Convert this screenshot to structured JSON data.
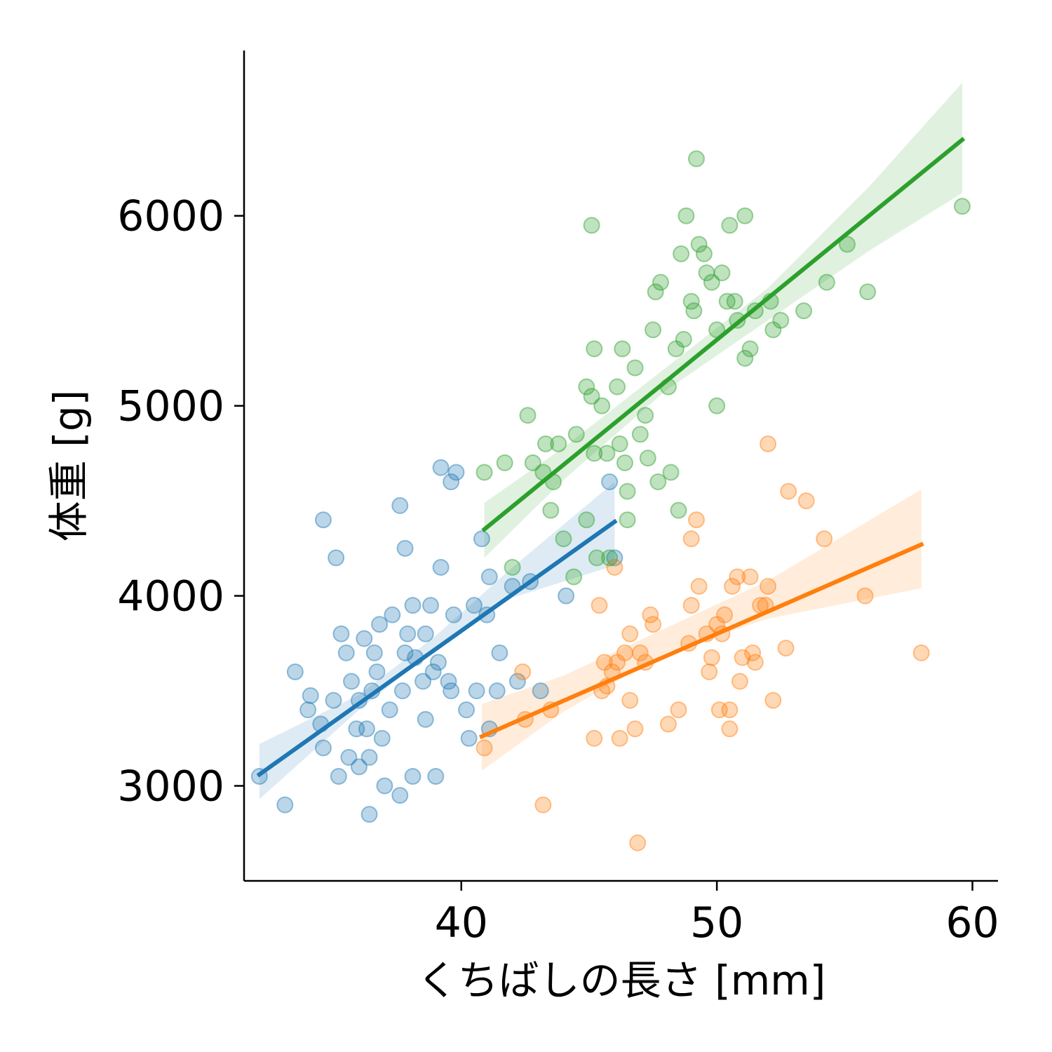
{
  "chart_data": {
    "type": "scatter",
    "title": "",
    "xlabel": "くちばしの長さ [mm]",
    "ylabel": "体重 [g]",
    "xlim": [
      31.5,
      61.0
    ],
    "ylim": [
      2500,
      6870
    ],
    "xticks": [
      40,
      50,
      60
    ],
    "yticks": [
      3000,
      4000,
      5000,
      6000
    ],
    "grid": false,
    "legend": "none",
    "regression": true,
    "series": [
      {
        "color": "#1f77b4",
        "fit": {
          "x": [
            32.1,
            46.0
          ],
          "y": [
            3060,
            4390
          ]
        },
        "ci_low": [
          [
            32.1,
            2930
          ],
          [
            36.0,
            3400
          ],
          [
            39.0,
            3720
          ],
          [
            42.0,
            3990
          ],
          [
            46.0,
            4160
          ]
        ],
        "ci_high": [
          [
            32.1,
            3220
          ],
          [
            36.0,
            3480
          ],
          [
            39.0,
            3790
          ],
          [
            42.0,
            4150
          ],
          [
            46.0,
            4600
          ]
        ],
        "points": [
          [
            32.1,
            3050
          ],
          [
            33.1,
            2900
          ],
          [
            33.5,
            3600
          ],
          [
            34.0,
            3400
          ],
          [
            34.1,
            3475
          ],
          [
            34.5,
            3325
          ],
          [
            34.6,
            3200
          ],
          [
            34.6,
            4400
          ],
          [
            35.0,
            3450
          ],
          [
            35.1,
            4200
          ],
          [
            35.2,
            3050
          ],
          [
            35.3,
            3800
          ],
          [
            35.5,
            3700
          ],
          [
            35.6,
            3150
          ],
          [
            35.7,
            3550
          ],
          [
            35.9,
            3300
          ],
          [
            36.0,
            3100
          ],
          [
            36.0,
            3450
          ],
          [
            36.2,
            3775
          ],
          [
            36.3,
            3300
          ],
          [
            36.4,
            2850
          ],
          [
            36.4,
            3150
          ],
          [
            36.5,
            3500
          ],
          [
            36.6,
            3700
          ],
          [
            36.7,
            3600
          ],
          [
            36.8,
            3850
          ],
          [
            37.0,
            3000
          ],
          [
            37.2,
            3400
          ],
          [
            37.3,
            3900
          ],
          [
            37.6,
            2950
          ],
          [
            37.6,
            4475
          ],
          [
            37.7,
            3500
          ],
          [
            37.8,
            4250
          ],
          [
            37.8,
            3700
          ],
          [
            38.1,
            3050
          ],
          [
            38.1,
            3950
          ],
          [
            38.2,
            3675
          ],
          [
            38.5,
            3550
          ],
          [
            38.6,
            3800
          ],
          [
            38.6,
            3350
          ],
          [
            38.8,
            3950
          ],
          [
            39.0,
            3050
          ],
          [
            39.1,
            3650
          ],
          [
            39.2,
            4150
          ],
          [
            39.2,
            4675
          ],
          [
            39.5,
            3550
          ],
          [
            39.6,
            4600
          ],
          [
            39.6,
            3500
          ],
          [
            39.7,
            3900
          ],
          [
            39.8,
            4650
          ],
          [
            40.2,
            3400
          ],
          [
            40.3,
            3250
          ],
          [
            40.5,
            3950
          ],
          [
            40.6,
            3500
          ],
          [
            40.8,
            4300
          ],
          [
            41.0,
            3900
          ],
          [
            41.1,
            4100
          ],
          [
            41.1,
            3300
          ],
          [
            41.4,
            3500
          ],
          [
            41.5,
            3700
          ],
          [
            42.0,
            4050
          ],
          [
            42.2,
            3550
          ],
          [
            42.7,
            4075
          ],
          [
            43.1,
            3500
          ],
          [
            44.1,
            4000
          ],
          [
            45.8,
            4600
          ],
          [
            46.0,
            4200
          ],
          [
            38.9,
            3600
          ],
          [
            37.9,
            3800
          ],
          [
            36.9,
            3250
          ]
        ]
      },
      {
        "color": "#ff7f0e",
        "fit": {
          "x": [
            40.8,
            58.0
          ],
          "y": [
            3260,
            4270
          ]
        },
        "ci_low": [
          [
            40.8,
            3080
          ],
          [
            44.0,
            3390
          ],
          [
            48.0,
            3700
          ],
          [
            52.0,
            3880
          ],
          [
            58.0,
            4040
          ]
        ],
        "ci_high": [
          [
            40.8,
            3430
          ],
          [
            44.0,
            3580
          ],
          [
            48.0,
            3830
          ],
          [
            52.0,
            4080
          ],
          [
            58.0,
            4560
          ]
        ],
        "points": [
          [
            40.9,
            3200
          ],
          [
            42.4,
            3600
          ],
          [
            42.5,
            3350
          ],
          [
            43.2,
            2900
          ],
          [
            43.5,
            3400
          ],
          [
            45.2,
            3250
          ],
          [
            45.4,
            3950
          ],
          [
            45.5,
            3500
          ],
          [
            45.6,
            3650
          ],
          [
            45.7,
            3525
          ],
          [
            46.0,
            4150
          ],
          [
            46.1,
            3650
          ],
          [
            46.2,
            3250
          ],
          [
            46.4,
            3700
          ],
          [
            46.6,
            3450
          ],
          [
            46.6,
            3800
          ],
          [
            46.8,
            3300
          ],
          [
            46.9,
            2700
          ],
          [
            47.0,
            3700
          ],
          [
            47.4,
            3900
          ],
          [
            47.5,
            3850
          ],
          [
            48.1,
            3325
          ],
          [
            48.5,
            3400
          ],
          [
            49.0,
            3950
          ],
          [
            49.0,
            4300
          ],
          [
            49.2,
            4400
          ],
          [
            49.3,
            4050
          ],
          [
            49.6,
            3800
          ],
          [
            49.7,
            3600
          ],
          [
            49.8,
            3675
          ],
          [
            50.1,
            3400
          ],
          [
            50.2,
            3800
          ],
          [
            50.3,
            3900
          ],
          [
            50.5,
            3300
          ],
          [
            50.5,
            3400
          ],
          [
            50.6,
            4050
          ],
          [
            50.8,
            4100
          ],
          [
            50.9,
            3550
          ],
          [
            51.0,
            3675
          ],
          [
            51.3,
            4100
          ],
          [
            51.4,
            3700
          ],
          [
            51.5,
            3650
          ],
          [
            51.7,
            3950
          ],
          [
            52.0,
            4800
          ],
          [
            52.0,
            4050
          ],
          [
            52.2,
            3450
          ],
          [
            52.7,
            3725
          ],
          [
            52.8,
            4550
          ],
          [
            53.5,
            4500
          ],
          [
            54.2,
            4300
          ],
          [
            55.8,
            4000
          ],
          [
            58.0,
            3700
          ],
          [
            45.9,
            3600
          ],
          [
            47.2,
            3650
          ],
          [
            48.9,
            3750
          ],
          [
            50.0,
            3850
          ],
          [
            51.9,
            3950
          ]
        ]
      },
      {
        "color": "#2ca02c",
        "fit": {
          "x": [
            40.9,
            59.6
          ],
          "y": [
            4350,
            6400
          ]
        },
        "ci_low": [
          [
            40.9,
            4200
          ],
          [
            44.0,
            4610
          ],
          [
            48.0,
            5080
          ],
          [
            52.0,
            5450
          ],
          [
            56.0,
            5820
          ],
          [
            59.6,
            6120
          ]
        ],
        "ci_high": [
          [
            40.9,
            4490
          ],
          [
            44.0,
            4780
          ],
          [
            48.0,
            5200
          ],
          [
            52.0,
            5620
          ],
          [
            56.0,
            6160
          ],
          [
            59.6,
            6700
          ]
        ],
        "points": [
          [
            40.9,
            4650
          ],
          [
            41.7,
            4700
          ],
          [
            42.0,
            4150
          ],
          [
            42.6,
            4950
          ],
          [
            42.8,
            4700
          ],
          [
            43.2,
            4650
          ],
          [
            43.3,
            4800
          ],
          [
            43.5,
            4450
          ],
          [
            43.6,
            4600
          ],
          [
            44.0,
            4300
          ],
          [
            44.4,
            4100
          ],
          [
            44.5,
            4850
          ],
          [
            44.9,
            5100
          ],
          [
            45.1,
            5050
          ],
          [
            45.2,
            4750
          ],
          [
            45.2,
            5300
          ],
          [
            45.3,
            4200
          ],
          [
            45.5,
            5000
          ],
          [
            45.7,
            4750
          ],
          [
            45.8,
            4200
          ],
          [
            46.1,
            5100
          ],
          [
            46.2,
            4800
          ],
          [
            46.3,
            5300
          ],
          [
            46.4,
            4700
          ],
          [
            46.5,
            4550
          ],
          [
            46.8,
            5200
          ],
          [
            47.0,
            4850
          ],
          [
            47.2,
            4950
          ],
          [
            47.3,
            4725
          ],
          [
            47.5,
            5400
          ],
          [
            47.7,
            4600
          ],
          [
            47.8,
            5650
          ],
          [
            48.1,
            5100
          ],
          [
            48.2,
            4650
          ],
          [
            48.4,
            5300
          ],
          [
            48.5,
            4450
          ],
          [
            48.7,
            5350
          ],
          [
            48.8,
            6000
          ],
          [
            49.0,
            5550
          ],
          [
            49.1,
            5500
          ],
          [
            49.2,
            6300
          ],
          [
            49.3,
            5850
          ],
          [
            49.5,
            5800
          ],
          [
            49.6,
            5700
          ],
          [
            49.8,
            5650
          ],
          [
            50.0,
            5400
          ],
          [
            50.0,
            5000
          ],
          [
            50.2,
            5700
          ],
          [
            50.4,
            5550
          ],
          [
            50.5,
            5950
          ],
          [
            50.7,
            5550
          ],
          [
            50.8,
            5450
          ],
          [
            51.1,
            5250
          ],
          [
            51.1,
            6000
          ],
          [
            51.3,
            5300
          ],
          [
            51.5,
            5500
          ],
          [
            52.1,
            5550
          ],
          [
            52.2,
            5400
          ],
          [
            52.5,
            5450
          ],
          [
            53.4,
            5500
          ],
          [
            54.3,
            5650
          ],
          [
            55.1,
            5850
          ],
          [
            55.9,
            5600
          ],
          [
            59.6,
            6050
          ],
          [
            45.1,
            5950
          ],
          [
            47.6,
            5600
          ],
          [
            48.6,
            5800
          ],
          [
            44.9,
            4400
          ],
          [
            46.5,
            4400
          ],
          [
            43.8,
            4800
          ]
        ]
      }
    ]
  }
}
